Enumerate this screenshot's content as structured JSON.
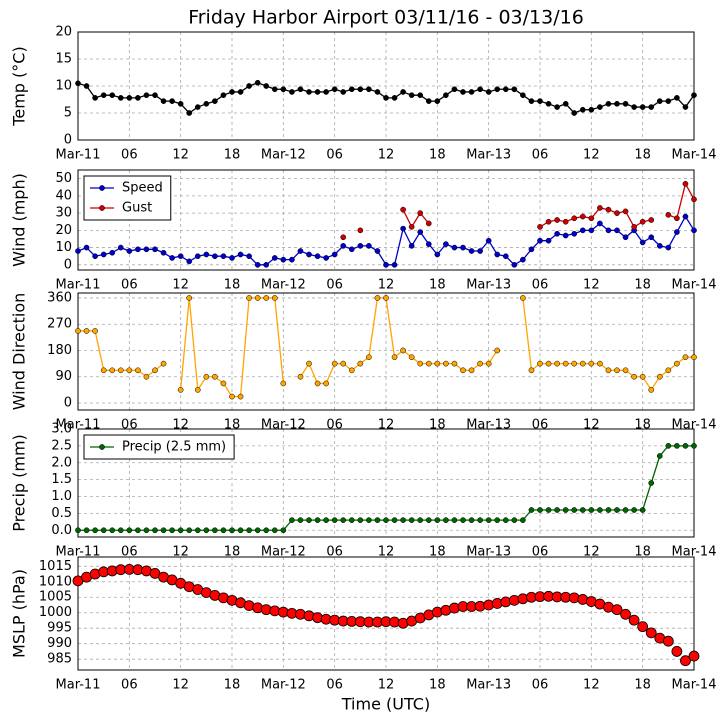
{
  "chart_data": [
    {
      "type": "line",
      "title": "Friday Harbor Airport 03/11/16 - 03/13/16",
      "ylabel": "Temp (°C)",
      "x": [
        0,
        1,
        2,
        3,
        4,
        5,
        6,
        7,
        8,
        9,
        10,
        11,
        12,
        13,
        14,
        15,
        16,
        17,
        18,
        19,
        20,
        21,
        22,
        23,
        24,
        25,
        26,
        27,
        28,
        29,
        30,
        31,
        32,
        33,
        34,
        35,
        36,
        37,
        38,
        39,
        40,
        41,
        42,
        43,
        44,
        45,
        46,
        47,
        48,
        49,
        50,
        51,
        52,
        53,
        54,
        55,
        56,
        57,
        58,
        59,
        60,
        61,
        62,
        63,
        64,
        65,
        66,
        67,
        68,
        69,
        70,
        71,
        72
      ],
      "series": [
        {
          "color": "#000000",
          "line": true,
          "values": [
            10.5,
            10,
            7.8,
            8.3,
            8.3,
            7.8,
            7.8,
            7.8,
            8.3,
            8.3,
            7.2,
            7.2,
            6.7,
            5,
            6.1,
            6.7,
            7.2,
            8.3,
            8.9,
            8.9,
            10,
            10.6,
            10,
            9.4,
            9.4,
            8.9,
            9.4,
            8.9,
            8.9,
            8.9,
            9.4,
            8.9,
            9.4,
            9.4,
            9.4,
            8.9,
            7.8,
            7.8,
            8.9,
            8.3,
            8.3,
            7.2,
            7.2,
            8.3,
            9.4,
            8.9,
            8.9,
            9.4,
            8.9,
            9.4,
            9.4,
            9.4,
            8.3,
            7.2,
            7.2,
            6.7,
            6.1,
            6.7,
            5,
            5.6,
            5.6,
            6.1,
            6.7,
            6.7,
            6.7,
            6.1,
            6.1,
            6.1,
            7.2,
            7.2,
            7.8,
            6.1,
            8.3
          ]
        }
      ],
      "xlim": [
        0,
        72
      ],
      "ylim": [
        0,
        20
      ],
      "yticks": [
        0,
        5,
        10,
        15,
        20
      ],
      "xticks": [
        {
          "value": 0,
          "label": "Mar-11"
        },
        {
          "value": 6,
          "label": "06"
        },
        12,
        18,
        {
          "value": 24,
          "label": "Mar-12"
        },
        {
          "value": 30,
          "label": "06"
        },
        {
          "value": 36,
          "label": "12"
        },
        {
          "value": 42,
          "label": "18"
        },
        {
          "value": 48,
          "label": "Mar-13"
        },
        {
          "value": 54,
          "label": "06"
        },
        {
          "value": 60,
          "label": "12"
        },
        {
          "value": 66,
          "label": "18"
        },
        {
          "value": 72,
          "label": "Mar-14"
        }
      ],
      "grid": true
    },
    {
      "type": "line",
      "ylabel": "Wind (mph)",
      "x": [
        0,
        1,
        2,
        3,
        4,
        5,
        6,
        7,
        8,
        9,
        10,
        11,
        12,
        13,
        14,
        15,
        16,
        17,
        18,
        19,
        20,
        21,
        22,
        23,
        24,
        25,
        26,
        27,
        28,
        29,
        30,
        31,
        32,
        33,
        34,
        35,
        36,
        37,
        38,
        39,
        40,
        41,
        42,
        43,
        44,
        45,
        46,
        47,
        48,
        49,
        50,
        51,
        52,
        53,
        54,
        55,
        56,
        57,
        58,
        59,
        60,
        61,
        62,
        63,
        64,
        65,
        66,
        67,
        68,
        69,
        70,
        71,
        72
      ],
      "series": [
        {
          "name": "Speed",
          "color": "#0000cc",
          "line": true,
          "values": [
            8,
            10,
            5,
            6,
            7,
            10,
            8,
            9,
            9,
            9,
            7,
            4,
            5,
            2,
            5,
            6,
            5,
            5,
            4,
            6,
            5,
            0,
            0,
            4,
            3,
            3,
            8,
            6,
            5,
            4,
            6,
            11,
            9,
            11,
            11,
            8,
            0,
            0,
            21,
            11,
            19,
            12,
            6,
            12,
            10,
            10,
            8,
            8,
            14,
            6,
            5,
            0,
            3,
            9,
            14,
            14,
            18,
            17,
            18,
            20,
            20,
            24,
            20,
            20,
            16,
            20,
            13,
            16,
            11,
            10,
            19,
            28,
            20
          ]
        },
        {
          "name": "Gust",
          "color": "#cc0000",
          "line": true,
          "values": [
            null,
            null,
            null,
            null,
            null,
            null,
            null,
            null,
            null,
            null,
            null,
            null,
            null,
            null,
            null,
            null,
            null,
            null,
            null,
            null,
            null,
            null,
            null,
            null,
            null,
            null,
            null,
            null,
            null,
            null,
            null,
            16,
            null,
            20,
            null,
            null,
            null,
            null,
            32,
            22,
            30,
            24,
            null,
            null,
            null,
            null,
            null,
            null,
            null,
            null,
            null,
            null,
            null,
            null,
            22,
            25,
            26,
            25,
            27,
            28,
            27,
            33,
            32,
            30,
            31,
            22,
            25,
            26,
            null,
            29,
            27,
            47,
            38
          ]
        }
      ],
      "xlim": [
        0,
        72
      ],
      "ylim": [
        -3,
        55
      ],
      "yticks": [
        0,
        10,
        20,
        30,
        40,
        50
      ],
      "xticks": [
        {
          "value": 0,
          "label": "Mar-11"
        },
        {
          "value": 6,
          "label": "06"
        },
        12,
        18,
        {
          "value": 24,
          "label": "Mar-12"
        },
        {
          "value": 30,
          "label": "06"
        },
        {
          "value": 36,
          "label": "12"
        },
        {
          "value": 42,
          "label": "18"
        },
        {
          "value": 48,
          "label": "Mar-13"
        },
        {
          "value": 54,
          "label": "06"
        },
        {
          "value": 60,
          "label": "12"
        },
        {
          "value": 66,
          "label": "18"
        },
        {
          "value": 72,
          "label": "Mar-14"
        }
      ],
      "grid": true,
      "legend": "upper left"
    },
    {
      "type": "line",
      "ylabel": "Wind Direction",
      "x": [
        0,
        1,
        2,
        3,
        4,
        5,
        6,
        7,
        8,
        9,
        10,
        11,
        12,
        13,
        14,
        15,
        16,
        17,
        18,
        19,
        20,
        21,
        22,
        23,
        24,
        25,
        26,
        27,
        28,
        29,
        30,
        31,
        32,
        33,
        34,
        35,
        36,
        37,
        38,
        39,
        40,
        41,
        42,
        43,
        44,
        45,
        46,
        47,
        48,
        49,
        50,
        51,
        52,
        53,
        54,
        55,
        56,
        57,
        58,
        59,
        60,
        61,
        62,
        63,
        64,
        65,
        66,
        67,
        68,
        69,
        70,
        71,
        72
      ],
      "series": [
        {
          "color": "#ffa500",
          "line": true,
          "values": [
            247,
            247,
            247,
            112,
            112,
            112,
            112,
            112,
            90,
            112,
            135,
            null,
            45,
            360,
            45,
            90,
            90,
            67,
            22,
            22,
            360,
            360,
            360,
            360,
            67,
            null,
            90,
            135,
            67,
            67,
            135,
            135,
            112,
            135,
            157,
            360,
            360,
            157,
            180,
            157,
            135,
            135,
            135,
            135,
            135,
            112,
            112,
            135,
            135,
            180,
            null,
            null,
            360,
            112,
            135,
            135,
            135,
            135,
            135,
            135,
            135,
            135,
            112,
            112,
            112,
            90,
            90,
            45,
            90,
            112,
            135,
            157,
            157
          ]
        }
      ],
      "xlim": [
        0,
        72
      ],
      "ylim": [
        -24,
        377
      ],
      "yticks": [
        0,
        90,
        180,
        270,
        360
      ],
      "xticks": [
        {
          "value": 0,
          "label": "Mar-11"
        },
        {
          "value": 6,
          "label": "06"
        },
        12,
        18,
        {
          "value": 24,
          "label": "Mar-12"
        },
        {
          "value": 30,
          "label": "06"
        },
        {
          "value": 36,
          "label": "12"
        },
        {
          "value": 42,
          "label": "18"
        },
        {
          "value": 48,
          "label": "Mar-13"
        },
        {
          "value": 54,
          "label": "06"
        },
        {
          "value": 60,
          "label": "12"
        },
        {
          "value": 66,
          "label": "18"
        },
        {
          "value": 72,
          "label": "Mar-14"
        }
      ],
      "grid": true
    },
    {
      "type": "line",
      "ylabel": "Precip (mm)",
      "x": [
        0,
        1,
        2,
        3,
        4,
        5,
        6,
        7,
        8,
        9,
        10,
        11,
        12,
        13,
        14,
        15,
        16,
        17,
        18,
        19,
        20,
        21,
        22,
        23,
        24,
        25,
        26,
        27,
        28,
        29,
        30,
        31,
        32,
        33,
        34,
        35,
        36,
        37,
        38,
        39,
        40,
        41,
        42,
        43,
        44,
        45,
        46,
        47,
        48,
        49,
        50,
        51,
        52,
        53,
        54,
        55,
        56,
        57,
        58,
        59,
        60,
        61,
        62,
        63,
        64,
        65,
        66,
        67,
        68,
        69,
        70,
        71,
        72
      ],
      "series": [
        {
          "name": "Precip (2.5 mm)",
          "color": "#006400",
          "line": true,
          "values": [
            0,
            0,
            0,
            0,
            0,
            0,
            0,
            0,
            0,
            0,
            0,
            0,
            0,
            0,
            0,
            0,
            0,
            0,
            0,
            0,
            0,
            0,
            0,
            0,
            0,
            0.3,
            0.3,
            0.3,
            0.3,
            0.3,
            0.3,
            0.3,
            0.3,
            0.3,
            0.3,
            0.3,
            0.3,
            0.3,
            0.3,
            0.3,
            0.3,
            0.3,
            0.3,
            0.3,
            0.3,
            0.3,
            0.3,
            0.3,
            0.3,
            0.3,
            0.3,
            0.3,
            0.3,
            0.6,
            0.6,
            0.6,
            0.6,
            0.6,
            0.6,
            0.6,
            0.6,
            0.6,
            0.6,
            0.6,
            0.6,
            0.6,
            0.6,
            1.4,
            2.2,
            2.5,
            2.5,
            2.5,
            2.5
          ]
        }
      ],
      "xlim": [
        0,
        72
      ],
      "ylim": [
        -0.2,
        3.0
      ],
      "yticks": [
        {
          "value": 0,
          "label": "0.0"
        },
        {
          "value": 0.5,
          "label": "0.5"
        },
        {
          "value": 1,
          "label": "1.0"
        },
        {
          "value": 1.5,
          "label": "1.5"
        },
        {
          "value": 2,
          "label": "2.0"
        },
        {
          "value": 2.5,
          "label": "2.5"
        },
        {
          "value": 3,
          "label": "3.0"
        }
      ],
      "xticks": [
        {
          "value": 0,
          "label": "Mar-11"
        },
        {
          "value": 6,
          "label": "06"
        },
        12,
        18,
        {
          "value": 24,
          "label": "Mar-12"
        },
        {
          "value": 30,
          "label": "06"
        },
        {
          "value": 36,
          "label": "12"
        },
        {
          "value": 42,
          "label": "18"
        },
        {
          "value": 48,
          "label": "Mar-13"
        },
        {
          "value": 54,
          "label": "06"
        },
        {
          "value": 60,
          "label": "12"
        },
        {
          "value": 66,
          "label": "18"
        },
        {
          "value": 72,
          "label": "Mar-14"
        }
      ],
      "grid": true,
      "legend": "upper left"
    },
    {
      "type": "scatter",
      "ylabel": "MSLP (hPa)",
      "xlabel": "Time (UTC)",
      "x": [
        0,
        1,
        2,
        3,
        4,
        5,
        6,
        7,
        8,
        9,
        10,
        11,
        12,
        13,
        14,
        15,
        16,
        17,
        18,
        19,
        20,
        21,
        22,
        23,
        24,
        25,
        26,
        27,
        28,
        29,
        30,
        31,
        32,
        33,
        34,
        35,
        36,
        37,
        38,
        39,
        40,
        41,
        42,
        43,
        44,
        45,
        46,
        47,
        48,
        49,
        50,
        51,
        52,
        53,
        54,
        55,
        56,
        57,
        58,
        59,
        60,
        61,
        62,
        63,
        64,
        65,
        66,
        67,
        68,
        69,
        70,
        71,
        72
      ],
      "series": [
        {
          "color": "#ff0000",
          "line": false,
          "values": [
            1010.3,
            1011.5,
            1012.5,
            1013.2,
            1013.5,
            1013.9,
            1014,
            1013.9,
            1013.5,
            1012.7,
            1011.5,
            1010.6,
            1009.5,
            1008.4,
            1007.5,
            1006.5,
            1005.6,
            1004.8,
            1004,
            1003.2,
            1002.3,
            1001.6,
            1001,
            1000.6,
            1000.2,
            999.8,
            999.5,
            999,
            998.4,
            997.9,
            997.6,
            997.3,
            997.2,
            997.1,
            997,
            997,
            997.1,
            997,
            996.6,
            997.3,
            998.3,
            999.3,
            1000.2,
            1000.8,
            1001.5,
            1002,
            1002,
            1002.1,
            1002.5,
            1003,
            1003.5,
            1004,
            1004.5,
            1005,
            1005.2,
            1005.3,
            1005.1,
            1005,
            1004.8,
            1004.3,
            1003.6,
            1002.8,
            1001.8,
            1001,
            999.5,
            997.6,
            995.5,
            993.5,
            991.8,
            990.8,
            987.5,
            984.5,
            986
          ]
        }
      ],
      "xlim": [
        0,
        72
      ],
      "ylim": [
        981.5,
        1018
      ],
      "yticks": [
        985,
        990,
        995,
        1000,
        1005,
        1010,
        1015
      ],
      "xticks": [
        {
          "value": 0,
          "label": "Mar-11"
        },
        {
          "value": 6,
          "label": "06"
        },
        12,
        18,
        {
          "value": 24,
          "label": "Mar-12"
        },
        {
          "value": 30,
          "label": "06"
        },
        {
          "value": 36,
          "label": "12"
        },
        {
          "value": 42,
          "label": "18"
        },
        {
          "value": 48,
          "label": "Mar-13"
        },
        {
          "value": 54,
          "label": "06"
        },
        {
          "value": 60,
          "label": "12"
        },
        {
          "value": 66,
          "label": "18"
        },
        {
          "value": 72,
          "label": "Mar-14"
        }
      ],
      "grid": true
    }
  ]
}
